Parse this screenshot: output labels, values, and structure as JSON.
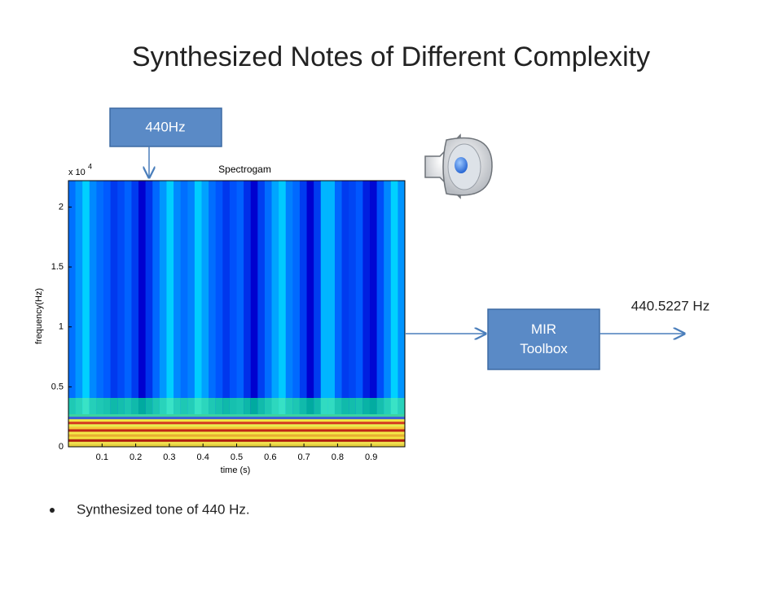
{
  "slide": {
    "title": "Synthesized Notes of Different Complexity",
    "callout": "440Hz",
    "box": "MIR Toolbox",
    "result": "440.5227 Hz",
    "bullets": [
      "Synthesized tone of 440 Hz."
    ],
    "spectrogram": {
      "title": "Spectrogam",
      "xlabel": "time (s)",
      "ylabel": "frequency(Hz)",
      "exponent_base": "x 10",
      "exponent_power": "4",
      "xlim": [
        0,
        1
      ],
      "ylim": [
        0,
        2.22
      ],
      "xticks": [
        0.1,
        0.2,
        0.3,
        0.4,
        0.5,
        0.6,
        0.7,
        0.8,
        0.9
      ],
      "yticks": [
        0,
        0.5,
        1,
        1.5,
        2
      ]
    }
  }
}
